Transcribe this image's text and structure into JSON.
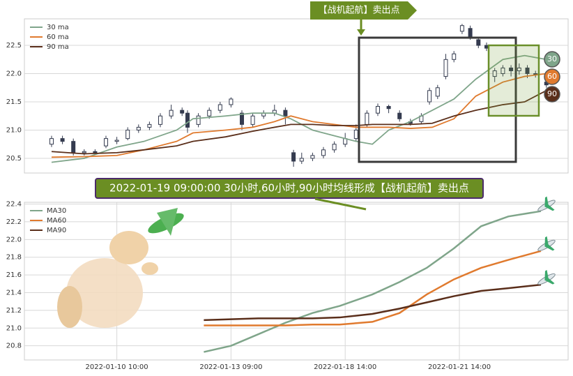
{
  "chart_data": [
    {
      "type": "candlestick",
      "annotation": "【战机起航】卖出点",
      "badges": [
        "30",
        "60",
        "90"
      ],
      "candle_color": "#343b4f",
      "ylim": [
        20.24,
        22.97
      ],
      "xlim": [
        0,
        100
      ],
      "yticks": [
        20.5,
        {
          "value": 21,
          "label": "21.0"
        },
        21.5,
        {
          "value": 22,
          "label": "22.0"
        },
        22.5
      ],
      "grid": true,
      "legend": "upper left",
      "x": [
        5,
        7,
        9,
        11,
        13,
        15,
        17,
        19,
        21,
        23,
        25,
        27,
        29,
        30,
        32,
        34,
        36,
        38,
        40,
        42,
        44,
        46,
        48,
        49.5,
        51,
        53,
        55,
        57,
        59,
        61,
        63,
        65,
        67,
        69,
        71,
        73,
        74.5,
        76,
        77.5,
        79,
        80.5,
        82,
        83.5,
        85,
        86.5,
        88,
        89.5,
        91,
        92.5,
        94,
        96
      ],
      "open": [
        20.75,
        20.85,
        20.8,
        20.6,
        20.62,
        20.72,
        20.8,
        20.85,
        21.0,
        21.05,
        21.1,
        21.25,
        21.35,
        21.3,
        21.1,
        21.25,
        21.35,
        21.45,
        21.3,
        21.1,
        21.25,
        21.3,
        21.35,
        20.6,
        20.45,
        20.5,
        20.55,
        20.65,
        20.75,
        20.85,
        21.1,
        21.3,
        21.42,
        21.3,
        21.15,
        21.15,
        21.5,
        21.6,
        21.95,
        22.25,
        22.75,
        22.8,
        22.6,
        22.5,
        21.95,
        22.0,
        22.1,
        22.05,
        22.1,
        22.0,
        21.85
      ],
      "close": [
        20.85,
        20.8,
        20.6,
        20.62,
        20.6,
        20.85,
        20.82,
        21.0,
        21.05,
        21.1,
        21.25,
        21.35,
        21.3,
        21.05,
        21.25,
        21.35,
        21.45,
        21.55,
        21.1,
        21.25,
        21.3,
        21.35,
        21.25,
        20.45,
        20.5,
        20.55,
        20.65,
        20.75,
        20.85,
        21.0,
        21.3,
        21.42,
        21.38,
        21.2,
        21.12,
        21.25,
        21.7,
        21.75,
        22.25,
        22.35,
        22.85,
        22.65,
        22.5,
        22.45,
        22.05,
        22.1,
        22.05,
        22.1,
        22.0,
        21.98,
        21.8
      ],
      "high": [
        20.9,
        20.9,
        20.85,
        20.66,
        20.66,
        20.9,
        20.88,
        21.05,
        21.1,
        21.15,
        21.3,
        21.45,
        21.4,
        21.35,
        21.3,
        21.4,
        21.5,
        21.58,
        21.35,
        21.3,
        21.35,
        21.45,
        21.4,
        20.65,
        20.6,
        20.6,
        20.7,
        20.8,
        20.95,
        21.1,
        21.35,
        21.47,
        21.45,
        21.35,
        21.2,
        21.3,
        21.75,
        21.8,
        22.35,
        22.4,
        22.88,
        22.85,
        22.65,
        22.55,
        22.1,
        22.15,
        22.15,
        22.18,
        22.15,
        22.05,
        21.9
      ],
      "low": [
        20.7,
        20.75,
        20.55,
        20.55,
        20.56,
        20.68,
        20.75,
        20.82,
        20.95,
        21.0,
        21.05,
        21.2,
        21.25,
        20.95,
        21.05,
        21.2,
        21.3,
        21.4,
        21.0,
        21.05,
        21.2,
        21.25,
        21.1,
        20.35,
        20.4,
        20.45,
        20.5,
        20.6,
        20.7,
        20.8,
        21.05,
        21.25,
        21.3,
        21.15,
        21.08,
        21.1,
        21.45,
        21.55,
        21.9,
        22.2,
        22.7,
        22.6,
        22.45,
        22.4,
        21.85,
        21.95,
        21.95,
        21.98,
        21.92,
        21.93,
        21.75
      ],
      "series": [
        {
          "name": "30 ma",
          "color": "#7fa58a",
          "x": [
            5,
            11,
            17,
            22,
            28,
            31,
            37,
            42,
            46,
            49,
            53,
            57,
            61,
            64,
            67,
            71,
            75,
            79,
            83,
            88,
            92,
            96
          ],
          "values": [
            20.43,
            20.5,
            20.7,
            20.8,
            21.0,
            21.2,
            21.25,
            21.3,
            21.3,
            21.2,
            21.0,
            20.9,
            20.8,
            20.75,
            21.0,
            21.15,
            21.35,
            21.55,
            21.9,
            22.25,
            22.32,
            22.25
          ]
        },
        {
          "name": "60 ma",
          "color": "#e07a2e",
          "x": [
            5,
            11,
            17,
            22,
            28,
            31,
            37,
            42,
            46,
            49,
            53,
            57,
            61,
            64,
            67,
            71,
            75,
            79,
            83,
            88,
            92,
            96
          ],
          "values": [
            20.52,
            20.53,
            20.55,
            20.65,
            20.8,
            20.95,
            21.0,
            21.05,
            21.15,
            21.25,
            21.15,
            21.1,
            21.05,
            21.05,
            21.05,
            21.03,
            21.05,
            21.2,
            21.6,
            21.85,
            21.95,
            22.0
          ]
        },
        {
          "name": "90 ma",
          "color": "#5a2e1a",
          "x": [
            5,
            11,
            17,
            22,
            28,
            31,
            37,
            42,
            46,
            49,
            53,
            57,
            61,
            64,
            67,
            71,
            75,
            79,
            83,
            88,
            92,
            96
          ],
          "values": [
            20.62,
            20.58,
            20.6,
            20.65,
            20.72,
            20.8,
            20.88,
            20.98,
            21.05,
            21.1,
            21.1,
            21.08,
            21.08,
            21.1,
            21.1,
            21.1,
            21.12,
            21.25,
            21.35,
            21.45,
            21.5,
            21.7
          ]
        }
      ]
    },
    {
      "type": "line",
      "annotation": "2022-01-19 09:00:00 30小时,60小时,90小时均线形成【战机起航】卖出点",
      "ylim": [
        20.64,
        22.42
      ],
      "xlim": [
        0,
        100
      ],
      "yticks": [
        {
          "value": 20.8,
          "label": "20.8"
        },
        {
          "value": 21,
          "label": "21.0"
        },
        21.2,
        21.4,
        21.6,
        21.8,
        {
          "value": 22,
          "label": "22.0"
        },
        22.2,
        22.4
      ],
      "xticks": [
        {
          "value": 17,
          "label": "2022-01-10 10:00"
        },
        {
          "value": 38,
          "label": "2022-01-13 09:00"
        },
        {
          "value": 59,
          "label": "2022-01-18 14:00"
        },
        {
          "value": 80,
          "label": "2022-01-21 14:00"
        }
      ],
      "grid": true,
      "legend": "upper left",
      "x": [
        33,
        38,
        43,
        48,
        53,
        58,
        64,
        69,
        74,
        79,
        84,
        89,
        95
      ],
      "series": [
        {
          "name": "MA30",
          "color": "#7fa58a",
          "values": [
            20.73,
            20.8,
            20.93,
            21.06,
            21.17,
            21.25,
            21.38,
            21.52,
            21.68,
            21.9,
            22.15,
            22.26,
            22.32
          ]
        },
        {
          "name": "MA60",
          "color": "#e07a2e",
          "values": [
            21.03,
            21.03,
            21.03,
            21.03,
            21.04,
            21.04,
            21.07,
            21.17,
            21.38,
            21.55,
            21.68,
            21.77,
            21.87
          ]
        },
        {
          "name": "MA90",
          "color": "#5a2e1a",
          "values": [
            21.09,
            21.1,
            21.11,
            21.11,
            21.11,
            21.12,
            21.16,
            21.22,
            21.29,
            21.36,
            21.42,
            21.45,
            21.49
          ]
        }
      ]
    }
  ]
}
